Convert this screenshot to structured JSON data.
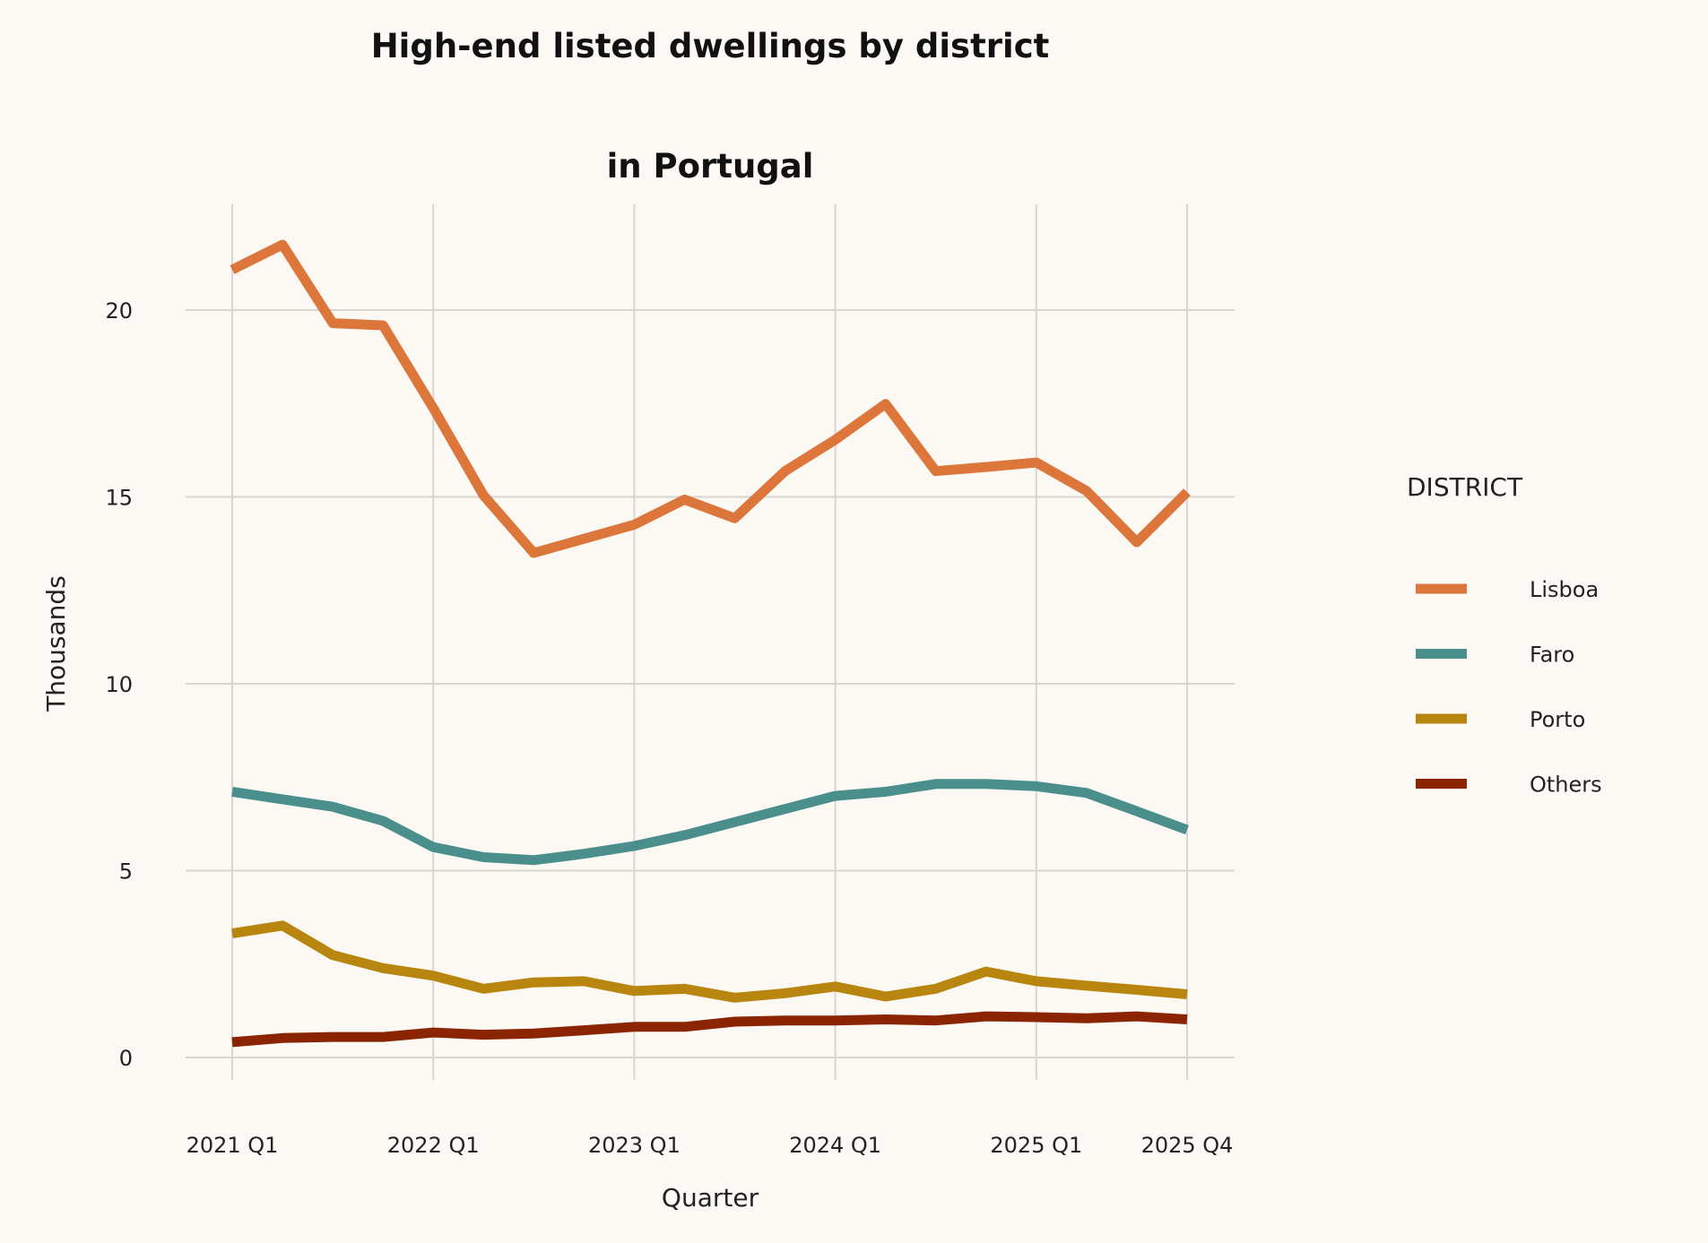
{
  "chart_data": {
    "type": "line",
    "title": [
      "High-end listed dwellings by district",
      "in Portugal"
    ],
    "xlabel": "Quarter",
    "ylabel": "Thousands",
    "x": [
      "2021 Q1",
      "2021 Q2",
      "2021 Q3",
      "2021 Q4",
      "2022 Q1",
      "2022 Q2",
      "2022 Q3",
      "2022 Q4",
      "2023 Q1",
      "2023 Q2",
      "2023 Q3",
      "2023 Q4",
      "2024 Q1",
      "2024 Q2",
      "2024 Q3",
      "2024 Q4",
      "2025 Q1",
      "2025 Q2",
      "2025 Q3",
      "2025 Q4"
    ],
    "x_ticks": [
      "2021 Q1",
      "2022 Q1",
      "2023 Q1",
      "2024 Q1",
      "2025 Q1",
      "2025 Q4"
    ],
    "y_ticks": [
      0,
      5,
      10,
      15,
      20
    ],
    "ylim": [
      0,
      22.8
    ],
    "grid": true,
    "legend": {
      "title": "DISTRICT",
      "placement": "right"
    },
    "series": [
      {
        "name": "Lisboa",
        "color": "#dc763b",
        "values": [
          21.08,
          21.75,
          19.65,
          19.59,
          17.38,
          15.04,
          13.5,
          13.88,
          14.26,
          14.93,
          14.43,
          15.69,
          16.53,
          17.49,
          15.69,
          15.8,
          15.92,
          15.16,
          13.79,
          15.13
        ]
      },
      {
        "name": "Faro",
        "color": "#4b8f8c",
        "values": [
          7.11,
          6.91,
          6.71,
          6.33,
          5.63,
          5.36,
          5.28,
          5.45,
          5.66,
          5.95,
          6.3,
          6.65,
          7.0,
          7.11,
          7.32,
          7.32,
          7.26,
          7.08,
          6.59,
          6.09
        ]
      },
      {
        "name": "Porto",
        "color": "#b8860f",
        "values": [
          3.32,
          3.53,
          2.74,
          2.39,
          2.19,
          1.84,
          2.01,
          2.04,
          1.78,
          1.84,
          1.6,
          1.72,
          1.9,
          1.63,
          1.84,
          2.3,
          2.04,
          1.92,
          1.81,
          1.69
        ]
      },
      {
        "name": "Others",
        "color": "#8b2400",
        "values": [
          0.41,
          0.52,
          0.55,
          0.55,
          0.67,
          0.61,
          0.64,
          0.73,
          0.82,
          0.82,
          0.96,
          0.99,
          0.99,
          1.02,
          0.99,
          1.1,
          1.08,
          1.05,
          1.1,
          1.02
        ]
      }
    ]
  }
}
